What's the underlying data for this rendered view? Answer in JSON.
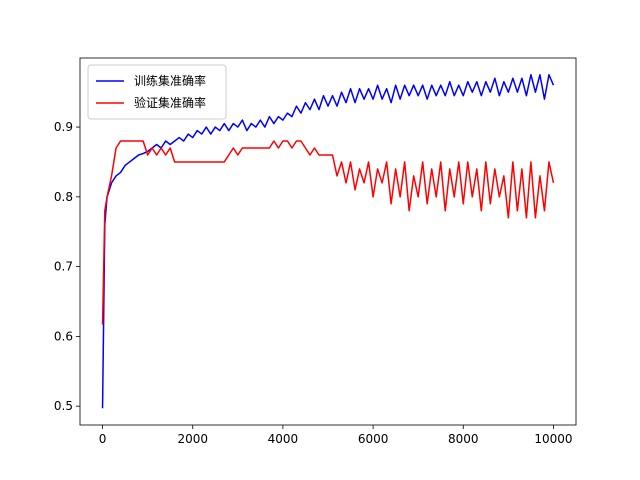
{
  "chart_data": {
    "type": "line",
    "x": [
      0,
      50,
      100,
      200,
      300,
      400,
      500,
      600,
      700,
      800,
      900,
      1000,
      1100,
      1200,
      1300,
      1400,
      1500,
      1600,
      1700,
      1800,
      1900,
      2000,
      2100,
      2200,
      2300,
      2400,
      2500,
      2600,
      2700,
      2800,
      2900,
      3000,
      3100,
      3200,
      3300,
      3400,
      3500,
      3600,
      3700,
      3800,
      3900,
      4000,
      4100,
      4200,
      4300,
      4400,
      4500,
      4600,
      4700,
      4800,
      4900,
      5000,
      5100,
      5200,
      5300,
      5400,
      5500,
      5600,
      5700,
      5800,
      5900,
      6000,
      6100,
      6200,
      6300,
      6400,
      6500,
      6600,
      6700,
      6800,
      6900,
      7000,
      7100,
      7200,
      7300,
      7400,
      7500,
      7600,
      7700,
      7800,
      7900,
      8000,
      8100,
      8200,
      8300,
      8400,
      8500,
      8600,
      8700,
      8800,
      8900,
      9000,
      9100,
      9200,
      9300,
      9400,
      9500,
      9600,
      9700,
      9800,
      9900,
      10000
    ],
    "series": [
      {
        "name": "训练集准确率",
        "color": "#0000ff",
        "values": [
          0.497,
          0.76,
          0.8,
          0.82,
          0.83,
          0.835,
          0.845,
          0.85,
          0.855,
          0.86,
          0.862,
          0.865,
          0.87,
          0.875,
          0.87,
          0.88,
          0.875,
          0.88,
          0.885,
          0.88,
          0.89,
          0.885,
          0.895,
          0.89,
          0.9,
          0.89,
          0.9,
          0.895,
          0.905,
          0.895,
          0.905,
          0.9,
          0.91,
          0.895,
          0.905,
          0.9,
          0.91,
          0.9,
          0.915,
          0.905,
          0.915,
          0.91,
          0.92,
          0.915,
          0.93,
          0.92,
          0.935,
          0.925,
          0.94,
          0.925,
          0.945,
          0.93,
          0.945,
          0.93,
          0.95,
          0.935,
          0.955,
          0.935,
          0.955,
          0.94,
          0.955,
          0.94,
          0.96,
          0.94,
          0.955,
          0.935,
          0.96,
          0.94,
          0.96,
          0.945,
          0.96,
          0.945,
          0.96,
          0.94,
          0.96,
          0.945,
          0.96,
          0.945,
          0.965,
          0.945,
          0.96,
          0.945,
          0.965,
          0.95,
          0.965,
          0.945,
          0.965,
          0.95,
          0.97,
          0.945,
          0.965,
          0.95,
          0.97,
          0.95,
          0.97,
          0.945,
          0.975,
          0.95,
          0.975,
          0.94,
          0.975,
          0.96
        ]
      },
      {
        "name": "验证集准确率",
        "color": "#ff0000",
        "values": [
          0.617,
          0.78,
          0.8,
          0.83,
          0.87,
          0.88,
          0.88,
          0.88,
          0.88,
          0.88,
          0.88,
          0.86,
          0.87,
          0.86,
          0.87,
          0.86,
          0.87,
          0.85,
          0.85,
          0.85,
          0.85,
          0.85,
          0.85,
          0.85,
          0.85,
          0.85,
          0.85,
          0.85,
          0.85,
          0.86,
          0.87,
          0.86,
          0.87,
          0.87,
          0.87,
          0.87,
          0.87,
          0.87,
          0.87,
          0.88,
          0.87,
          0.88,
          0.88,
          0.87,
          0.88,
          0.88,
          0.87,
          0.86,
          0.87,
          0.86,
          0.86,
          0.86,
          0.86,
          0.83,
          0.85,
          0.82,
          0.85,
          0.81,
          0.84,
          0.82,
          0.85,
          0.8,
          0.84,
          0.82,
          0.85,
          0.79,
          0.84,
          0.8,
          0.85,
          0.78,
          0.83,
          0.8,
          0.85,
          0.79,
          0.84,
          0.8,
          0.85,
          0.78,
          0.84,
          0.8,
          0.85,
          0.79,
          0.85,
          0.8,
          0.84,
          0.78,
          0.85,
          0.79,
          0.84,
          0.8,
          0.83,
          0.77,
          0.85,
          0.78,
          0.84,
          0.77,
          0.85,
          0.77,
          0.83,
          0.78,
          0.85,
          0.82
        ]
      }
    ],
    "xlim": [
      -500,
      10500
    ],
    "ylim": [
      0.473,
      0.999
    ],
    "xticks": [
      0,
      2000,
      4000,
      6000,
      8000,
      10000
    ],
    "yticks": [
      0.5,
      0.6,
      0.7,
      0.8,
      0.9
    ],
    "legend": "upper left"
  }
}
